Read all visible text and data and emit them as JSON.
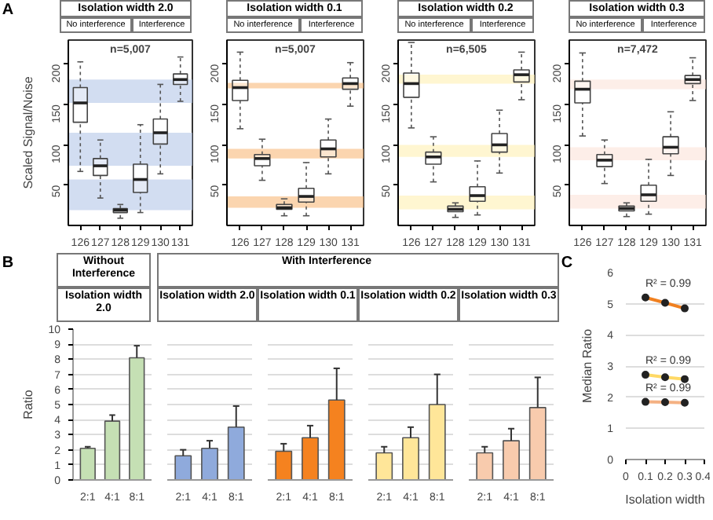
{
  "chart_data": [
    {
      "type": "box",
      "title": "Isolation width 2.0",
      "ylabel": "Scaled Signal/Noise",
      "categories": [
        "126",
        "127",
        "128",
        "129",
        "130",
        "131"
      ],
      "ylim": [
        0,
        230
      ],
      "yticks": [
        50,
        100,
        150,
        200
      ],
      "annotations": [
        "No interference",
        "Interference",
        "n=5,007",
        "A"
      ],
      "boxes": [
        {
          "low": 67,
          "q1": 128,
          "median": 152,
          "q3": 171,
          "high": 203
        },
        {
          "low": 34,
          "q1": 62,
          "median": 74,
          "q3": 83,
          "high": 106
        },
        {
          "low": 9,
          "q1": 16,
          "median": 19,
          "q3": 21,
          "high": 26
        },
        {
          "low": 16,
          "q1": 41,
          "median": 57,
          "q3": 76,
          "high": 125
        },
        {
          "low": 64,
          "q1": 101,
          "median": 115,
          "q3": 132,
          "high": 175
        },
        {
          "low": 154,
          "q1": 175,
          "median": 181,
          "q3": 188,
          "high": 209
        }
      ],
      "bands": [
        {
          "axis": "y",
          "from": 152,
          "to": 181,
          "color": "#b4c7e7"
        },
        {
          "axis": "y",
          "from": 74,
          "to": 115,
          "color": "#b4c7e7"
        },
        {
          "axis": "y",
          "from": 19,
          "to": 57,
          "color": "#b4c7e7"
        }
      ]
    },
    {
      "type": "box",
      "title": "Isolation width 0.1",
      "categories": [
        "126",
        "127",
        "128",
        "129",
        "130",
        "131"
      ],
      "ylim": [
        0,
        230
      ],
      "yticks": [
        50,
        100,
        150,
        200
      ],
      "annotations": [
        "No interference",
        "Interference",
        "n=5,007"
      ],
      "boxes": [
        {
          "low": 120,
          "q1": 155,
          "median": 171,
          "q3": 180,
          "high": 215
        },
        {
          "low": 56,
          "q1": 74,
          "median": 83,
          "q3": 88,
          "high": 107
        },
        {
          "low": 12,
          "q1": 20,
          "median": 22,
          "q3": 26,
          "high": 33
        },
        {
          "low": 12,
          "q1": 29,
          "median": 36,
          "q3": 46,
          "high": 78
        },
        {
          "low": 64,
          "q1": 85,
          "median": 95,
          "q3": 106,
          "high": 132
        },
        {
          "low": 148,
          "q1": 169,
          "median": 176,
          "q3": 183,
          "high": 202
        }
      ],
      "bands": [
        {
          "axis": "y",
          "from": 170,
          "to": 177,
          "color": "#f9b97a"
        },
        {
          "axis": "y",
          "from": 83,
          "to": 95,
          "color": "#f9b97a"
        },
        {
          "axis": "y",
          "from": 22,
          "to": 36,
          "color": "#f9b97a"
        }
      ]
    },
    {
      "type": "box",
      "title": "Isolation width 0.2",
      "categories": [
        "126",
        "127",
        "128",
        "129",
        "130",
        "131"
      ],
      "ylim": [
        0,
        230
      ],
      "yticks": [
        50,
        100,
        150,
        200
      ],
      "annotations": [
        "No interference",
        "Interference",
        "n=6,505"
      ],
      "boxes": [
        {
          "low": 121,
          "q1": 159,
          "median": 176,
          "q3": 189,
          "high": 227
        },
        {
          "low": 54,
          "q1": 76,
          "median": 85,
          "q3": 91,
          "high": 110
        },
        {
          "low": 10,
          "q1": 17,
          "median": 20,
          "q3": 24,
          "high": 28
        },
        {
          "low": 13,
          "q1": 30,
          "median": 37,
          "q3": 48,
          "high": 80
        },
        {
          "low": 65,
          "q1": 91,
          "median": 100,
          "q3": 114,
          "high": 143
        },
        {
          "low": 156,
          "q1": 178,
          "median": 187,
          "q3": 193,
          "high": 215
        }
      ],
      "bands": [
        {
          "axis": "y",
          "from": 176,
          "to": 187,
          "color": "#fff0b3"
        },
        {
          "axis": "y",
          "from": 85,
          "to": 100,
          "color": "#fff0b3"
        },
        {
          "axis": "y",
          "from": 20,
          "to": 37,
          "color": "#fff0b3"
        }
      ]
    },
    {
      "type": "box",
      "title": "Isolation width 0.3",
      "categories": [
        "126",
        "127",
        "128",
        "129",
        "130",
        "131"
      ],
      "ylim": [
        0,
        230
      ],
      "yticks": [
        50,
        100,
        150,
        200
      ],
      "annotations": [
        "No interference",
        "Interference",
        "n=7,472"
      ],
      "boxes": [
        {
          "low": 111,
          "q1": 152,
          "median": 169,
          "q3": 179,
          "high": 214
        },
        {
          "low": 52,
          "q1": 73,
          "median": 81,
          "q3": 88,
          "high": 106
        },
        {
          "low": 11,
          "q1": 18,
          "median": 21,
          "q3": 24,
          "high": 28
        },
        {
          "low": 14,
          "q1": 30,
          "median": 38,
          "q3": 50,
          "high": 82
        },
        {
          "low": 62,
          "q1": 89,
          "median": 97,
          "q3": 110,
          "high": 141
        },
        {
          "low": 155,
          "q1": 176,
          "median": 181,
          "q3": 186,
          "high": 208
        }
      ],
      "bands": [
        {
          "axis": "y",
          "from": 169,
          "to": 181,
          "color": "#fbe3d8"
        },
        {
          "axis": "y",
          "from": 81,
          "to": 97,
          "color": "#fbe3d8"
        },
        {
          "axis": "y",
          "from": 21,
          "to": 38,
          "color": "#fbe3d8"
        }
      ]
    },
    {
      "type": "bar",
      "title": "Without Interference",
      "subtitle": "Isolation width 2.0",
      "ylabel": "Ratio",
      "categories": [
        "2:1",
        "4:1",
        "8:1"
      ],
      "values": [
        2.1,
        3.9,
        8.1
      ],
      "errors": [
        [
          2.1,
          2.2
        ],
        [
          3.9,
          4.3
        ],
        [
          8.1,
          8.9
        ]
      ],
      "color": "#c5e0b4",
      "ylim": [
        0,
        10
      ],
      "yticks": [
        0,
        1,
        2,
        3,
        4,
        5,
        6,
        7,
        8,
        9,
        10
      ],
      "grid": "y",
      "annotations": [
        "B"
      ]
    },
    {
      "type": "bar",
      "subtitle": "Isolation width 2.0",
      "categories": [
        "2:1",
        "4:1",
        "8:1"
      ],
      "values": [
        1.6,
        2.1,
        3.5
      ],
      "errors": [
        [
          1.6,
          2.0
        ],
        [
          2.1,
          2.6
        ],
        [
          3.5,
          4.9
        ]
      ],
      "color": "#8faadc",
      "ylim": [
        0,
        10
      ],
      "yticks": [
        0,
        1,
        2,
        3,
        4,
        5,
        6,
        7,
        8,
        9,
        10
      ],
      "grid": "y",
      "tick_labels": "x"
    },
    {
      "type": "bar",
      "title": "With Interference",
      "subtitle": "Isolation width 0.1",
      "categories": [
        "2:1",
        "4:1",
        "8:1"
      ],
      "values": [
        1.9,
        2.8,
        5.3
      ],
      "errors": [
        [
          1.9,
          2.4
        ],
        [
          2.8,
          3.6
        ],
        [
          5.3,
          7.4
        ]
      ],
      "color": "#f5821f",
      "ylim": [
        0,
        10
      ],
      "yticks": [
        0,
        1,
        2,
        3,
        4,
        5,
        6,
        7,
        8,
        9,
        10
      ],
      "grid": "y",
      "tick_labels": "x"
    },
    {
      "type": "bar",
      "subtitle": "Isolation width 0.2",
      "categories": [
        "2:1",
        "4:1",
        "8:1"
      ],
      "values": [
        1.8,
        2.8,
        5.0
      ],
      "errors": [
        [
          1.8,
          2.2
        ],
        [
          2.8,
          3.5
        ],
        [
          5.0,
          7.0
        ]
      ],
      "color": "#ffe699",
      "ylim": [
        0,
        10
      ],
      "yticks": [
        0,
        1,
        2,
        3,
        4,
        5,
        6,
        7,
        8,
        9,
        10
      ],
      "grid": "y",
      "tick_labels": "x"
    },
    {
      "type": "bar",
      "subtitle": "Isolation width 0.3",
      "categories": [
        "2:1",
        "4:1",
        "8:1"
      ],
      "values": [
        1.8,
        2.6,
        4.8
      ],
      "errors": [
        [
          1.8,
          2.2
        ],
        [
          2.6,
          3.4
        ],
        [
          4.8,
          6.8
        ]
      ],
      "color": "#f8cbad",
      "ylim": [
        0,
        10
      ],
      "yticks": [
        0,
        1,
        2,
        3,
        4,
        5,
        6,
        7,
        8,
        9,
        10
      ],
      "grid": "y",
      "tick_labels": "x"
    },
    {
      "type": "line",
      "xlabel": "Isolation width",
      "ylabel": "Median Ratio",
      "xlim": [
        0,
        0.4
      ],
      "xticks": [
        0,
        0.1,
        0.2,
        0.3,
        0.4
      ],
      "ylim": [
        0,
        6
      ],
      "yticks": [
        0,
        1,
        2,
        3,
        4,
        5,
        6
      ],
      "grid": "y",
      "marker": "circle",
      "series": [
        {
          "color": "#f08020",
          "x": [
            0.1,
            0.2,
            0.3
          ],
          "values": [
            5.2,
            5.03,
            4.85
          ]
        },
        {
          "color": "#ffd966",
          "x": [
            0.1,
            0.2,
            0.3
          ],
          "values": [
            2.72,
            2.64,
            2.58
          ]
        },
        {
          "color": "#f4b183",
          "x": [
            0.1,
            0.2,
            0.3
          ],
          "values": [
            1.85,
            1.84,
            1.82
          ]
        }
      ],
      "annotations": [
        "R² = 0.99",
        "R² = 0.99",
        "R² = 0.99",
        "C"
      ]
    }
  ]
}
